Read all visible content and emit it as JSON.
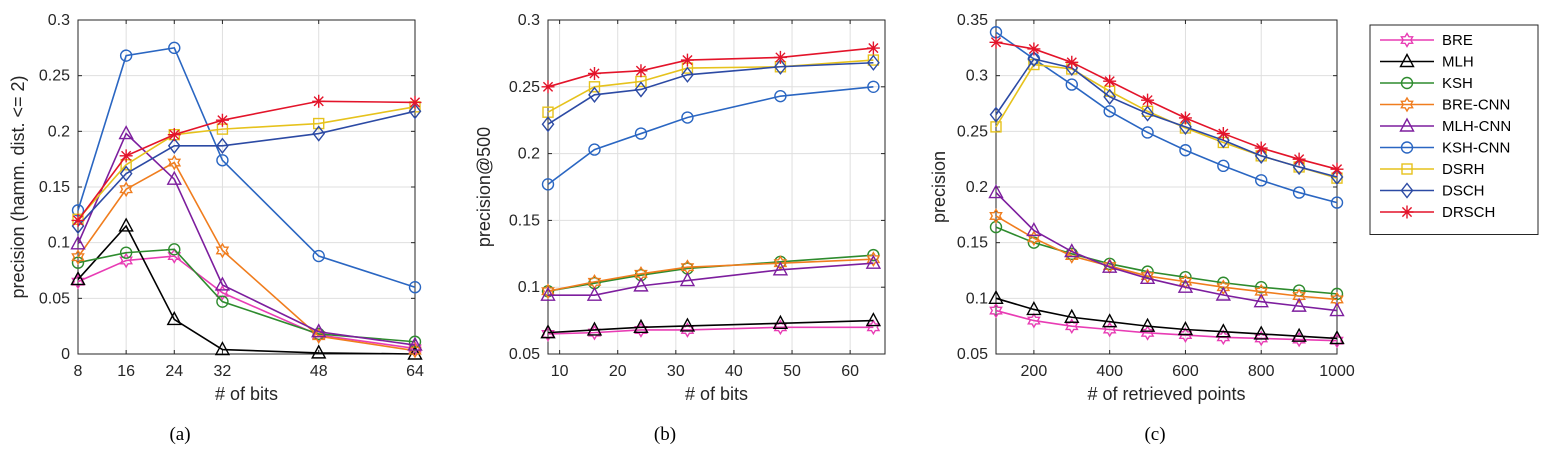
{
  "series_styles": [
    {
      "name": "BRE",
      "color": "#e83cb4",
      "marker": "hexagram"
    },
    {
      "name": "MLH",
      "color": "#000000",
      "marker": "triangle"
    },
    {
      "name": "KSH",
      "color": "#2e8b2e",
      "marker": "circle"
    },
    {
      "name": "BRE-CNN",
      "color": "#f07d1e",
      "marker": "hexagram"
    },
    {
      "name": "MLH-CNN",
      "color": "#7d1e9e",
      "marker": "triangle"
    },
    {
      "name": "KSH-CNN",
      "color": "#2a66c2",
      "marker": "circle"
    },
    {
      "name": "DSRH",
      "color": "#e6c21c",
      "marker": "square"
    },
    {
      "name": "DSCH",
      "color": "#2c4aa4",
      "marker": "diamond"
    },
    {
      "name": "DRSCH",
      "color": "#e3142a",
      "marker": "asterisk"
    }
  ],
  "chart_data": [
    {
      "type": "line",
      "caption": "(a)",
      "xlabel": "# of bits",
      "ylabel": "precision (hamm. dist. <= 2)",
      "xlim": [
        8,
        64
      ],
      "ylim": [
        0,
        0.3
      ],
      "xticks": [
        8,
        16,
        24,
        32,
        48,
        64
      ],
      "xtick_labels": [
        "8",
        "16",
        "24",
        "32",
        "48",
        "64"
      ],
      "yticks": [
        0,
        0.05,
        0.1,
        0.15,
        0.2,
        0.25,
        0.3
      ],
      "ytick_labels": [
        "0",
        "0.05",
        "0.1",
        "0.15",
        "0.2",
        "0.25",
        "0.3"
      ],
      "grid": true,
      "x": [
        8,
        16,
        24,
        32,
        48,
        64
      ],
      "series": [
        {
          "name": "BRE",
          "values": [
            0.065,
            0.084,
            0.088,
            0.055,
            0.017,
            0.005
          ]
        },
        {
          "name": "MLH",
          "values": [
            0.067,
            0.115,
            0.031,
            0.004,
            0.001,
            0.0
          ]
        },
        {
          "name": "KSH",
          "values": [
            0.082,
            0.091,
            0.094,
            0.047,
            0.018,
            0.011
          ]
        },
        {
          "name": "BRE-CNN",
          "values": [
            0.087,
            0.148,
            0.172,
            0.093,
            0.016,
            0.003
          ]
        },
        {
          "name": "MLH-CNN",
          "values": [
            0.099,
            0.198,
            0.157,
            0.062,
            0.02,
            0.008
          ]
        },
        {
          "name": "KSH-CNN",
          "values": [
            0.129,
            0.268,
            0.275,
            0.174,
            0.088,
            0.06
          ]
        },
        {
          "name": "DSRH",
          "values": [
            0.121,
            0.17,
            0.197,
            0.202,
            0.207,
            0.222
          ]
        },
        {
          "name": "DSCH",
          "values": [
            0.115,
            0.162,
            0.187,
            0.187,
            0.198,
            0.218
          ]
        },
        {
          "name": "DRSCH",
          "values": [
            0.12,
            0.178,
            0.197,
            0.21,
            0.227,
            0.226
          ]
        }
      ]
    },
    {
      "type": "line",
      "caption": "(b)",
      "xlabel": "# of bits",
      "ylabel": "precision@500",
      "xlim": [
        8,
        66
      ],
      "ylim": [
        0.05,
        0.3
      ],
      "xticks": [
        10,
        20,
        30,
        40,
        50,
        60
      ],
      "xtick_labels": [
        "10",
        "20",
        "30",
        "40",
        "50",
        "60"
      ],
      "yticks": [
        0.05,
        0.1,
        0.15,
        0.2,
        0.25,
        0.3
      ],
      "ytick_labels": [
        "0.05",
        "0.1",
        "0.15",
        "0.2",
        "0.25",
        "0.3"
      ],
      "grid": true,
      "x": [
        8,
        16,
        24,
        32,
        48,
        64
      ],
      "series": [
        {
          "name": "BRE",
          "values": [
            0.065,
            0.066,
            0.068,
            0.068,
            0.07,
            0.07
          ]
        },
        {
          "name": "MLH",
          "values": [
            0.066,
            0.068,
            0.07,
            0.071,
            0.073,
            0.075
          ]
        },
        {
          "name": "KSH",
          "values": [
            0.097,
            0.103,
            0.109,
            0.114,
            0.119,
            0.124
          ]
        },
        {
          "name": "BRE-CNN",
          "values": [
            0.097,
            0.104,
            0.11,
            0.115,
            0.118,
            0.121
          ]
        },
        {
          "name": "MLH-CNN",
          "values": [
            0.094,
            0.094,
            0.101,
            0.105,
            0.113,
            0.118
          ]
        },
        {
          "name": "KSH-CNN",
          "values": [
            0.177,
            0.203,
            0.215,
            0.227,
            0.243,
            0.25
          ]
        },
        {
          "name": "DSRH",
          "values": [
            0.231,
            0.25,
            0.254,
            0.264,
            0.265,
            0.27
          ]
        },
        {
          "name": "DSCH",
          "values": [
            0.222,
            0.244,
            0.248,
            0.259,
            0.265,
            0.268
          ]
        },
        {
          "name": "DRSCH",
          "values": [
            0.25,
            0.26,
            0.262,
            0.27,
            0.272,
            0.279
          ]
        }
      ]
    },
    {
      "type": "line",
      "caption": "(c)",
      "xlabel": "# of retrieved points",
      "ylabel": "precision",
      "xlim": [
        100,
        1000
      ],
      "ylim": [
        0.05,
        0.35
      ],
      "xticks": [
        200,
        400,
        600,
        800,
        1000
      ],
      "xtick_labels": [
        "200",
        "400",
        "600",
        "800",
        "1000"
      ],
      "yticks": [
        0.05,
        0.1,
        0.15,
        0.2,
        0.25,
        0.3,
        0.35
      ],
      "ytick_labels": [
        "0.05",
        "0.1",
        "0.15",
        "0.2",
        "0.25",
        "0.3",
        "0.35"
      ],
      "grid": true,
      "x": [
        100,
        200,
        300,
        400,
        500,
        600,
        700,
        800,
        900,
        1000
      ],
      "series": [
        {
          "name": "BRE",
          "values": [
            0.089,
            0.08,
            0.075,
            0.072,
            0.069,
            0.067,
            0.065,
            0.064,
            0.063,
            0.062
          ]
        },
        {
          "name": "MLH",
          "values": [
            0.1,
            0.09,
            0.083,
            0.079,
            0.075,
            0.072,
            0.07,
            0.068,
            0.066,
            0.064
          ]
        },
        {
          "name": "KSH",
          "values": [
            0.164,
            0.15,
            0.14,
            0.131,
            0.124,
            0.119,
            0.114,
            0.11,
            0.107,
            0.104
          ]
        },
        {
          "name": "BRE-CNN",
          "values": [
            0.174,
            0.154,
            0.138,
            0.129,
            0.12,
            0.115,
            0.11,
            0.106,
            0.102,
            0.099
          ]
        },
        {
          "name": "MLH-CNN",
          "values": [
            0.195,
            0.161,
            0.142,
            0.128,
            0.118,
            0.11,
            0.103,
            0.097,
            0.093,
            0.089
          ]
        },
        {
          "name": "KSH-CNN",
          "values": [
            0.339,
            0.315,
            0.292,
            0.268,
            0.249,
            0.233,
            0.219,
            0.206,
            0.195,
            0.186
          ]
        },
        {
          "name": "DSRH",
          "values": [
            0.254,
            0.31,
            0.306,
            0.286,
            0.268,
            0.253,
            0.24,
            0.228,
            0.218,
            0.208
          ]
        },
        {
          "name": "DSCH",
          "values": [
            0.265,
            0.315,
            0.307,
            0.281,
            0.266,
            0.254,
            0.242,
            0.228,
            0.218,
            0.209
          ]
        },
        {
          "name": "DRSCH",
          "values": [
            0.33,
            0.324,
            0.312,
            0.295,
            0.278,
            0.262,
            0.248,
            0.235,
            0.225,
            0.216
          ]
        }
      ]
    }
  ],
  "legend": {
    "placement": "right",
    "entries": [
      "BRE",
      "MLH",
      "KSH",
      "BRE-CNN",
      "MLH-CNN",
      "KSH-CNN",
      "DSRH",
      "DSCH",
      "DRSCH"
    ]
  }
}
